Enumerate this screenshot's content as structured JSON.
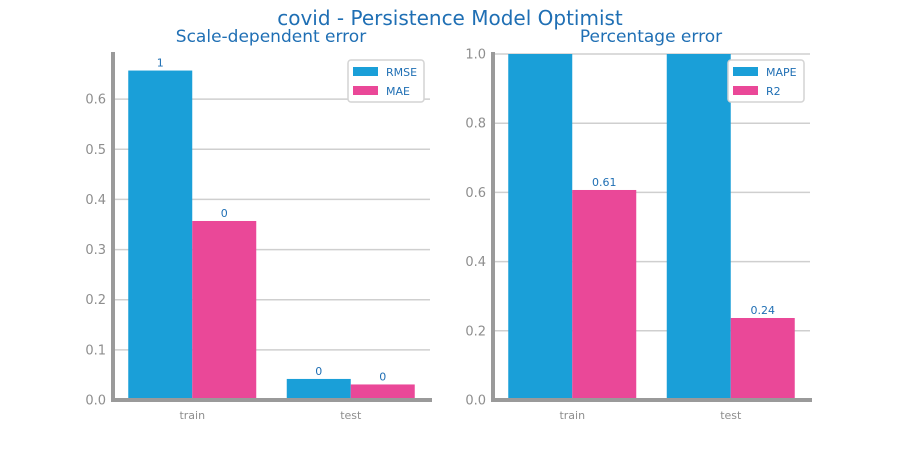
{
  "title": "covid - Persistence Model Optimist",
  "colors": {
    "series1": "#1a9fd8",
    "series2": "#ea4898",
    "grid": "#cfcfcf",
    "axis": "#9a9a9a",
    "text": "#1f6fb4"
  },
  "chart_data": [
    {
      "type": "bar",
      "title": "Scale-dependent error",
      "categories": [
        "train",
        "test"
      ],
      "series": [
        {
          "name": "RMSE",
          "values": [
            0.657,
            0.042
          ],
          "labels": [
            "1",
            "0"
          ]
        },
        {
          "name": "MAE",
          "values": [
            0.357,
            0.031
          ],
          "labels": [
            "0",
            "0"
          ]
        }
      ],
      "ylim": [
        0,
        0.69
      ],
      "yticks": [
        0.0,
        0.1,
        0.2,
        0.3,
        0.4,
        0.5,
        0.6
      ],
      "ytick_labels": [
        "0.0",
        "0.1",
        "0.2",
        "0.3",
        "0.4",
        "0.5",
        "0.6"
      ],
      "grid": true,
      "legend": "top-right"
    },
    {
      "type": "bar",
      "title": "Percentage error",
      "categories": [
        "train",
        "test"
      ],
      "series": [
        {
          "name": "MAPE",
          "values": [
            1.0,
            1.0
          ],
          "labels": [
            "",
            ""
          ]
        },
        {
          "name": "R2",
          "values": [
            0.607,
            0.237
          ],
          "labels": [
            "0.61",
            "0.24"
          ]
        }
      ],
      "ylim": [
        0,
        1.0
      ],
      "yticks": [
        0.0,
        0.2,
        0.4,
        0.6,
        0.8,
        1.0
      ],
      "ytick_labels": [
        "0.0",
        "0.2",
        "0.4",
        "0.6",
        "0.8",
        "1.0"
      ],
      "grid": true,
      "legend": "top-right"
    }
  ]
}
